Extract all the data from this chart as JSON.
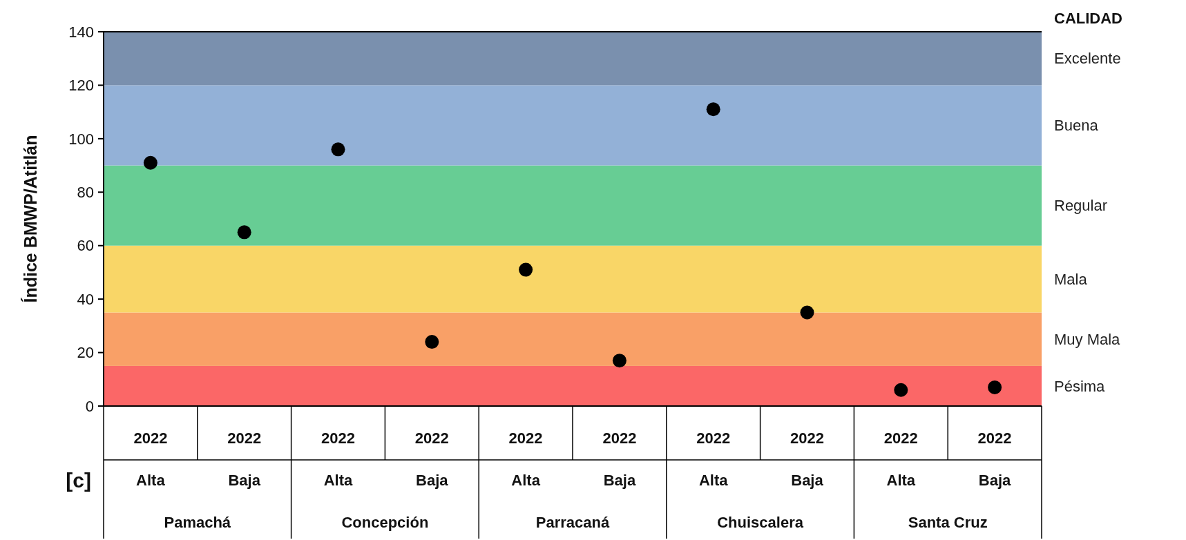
{
  "chart_data": {
    "type": "scatter",
    "ylabel": "Índice BMWP/Atitlán",
    "legend_title": "CALIDAD",
    "categories": [
      "2022\nAlta",
      "2022\nBaja",
      "2022\nAlta",
      "2022\nBaja",
      "2022\nAlta",
      "2022\nBaja",
      "2022\nAlta",
      "2022\nBaja",
      "2022\nAlta",
      "2022\nBaja"
    ],
    "series": [
      {
        "color": "#000000",
        "values": [
          91,
          65,
          96,
          24,
          51,
          17,
          111,
          35,
          6,
          7
        ]
      }
    ],
    "marker": "circle",
    "ylim": [
      0,
      140
    ],
    "yticks": [
      0,
      20,
      40,
      60,
      80,
      100,
      120,
      140
    ],
    "bands": [
      {
        "axis": "y",
        "from": 0,
        "to": 15,
        "label": "Pésima",
        "color": "#fb6767"
      },
      {
        "axis": "y",
        "from": 15,
        "to": 35,
        "label": "Muy Mala",
        "color": "#f9a067"
      },
      {
        "axis": "y",
        "from": 35,
        "to": 60,
        "label": "Mala",
        "color": "#f9d667"
      },
      {
        "axis": "y",
        "from": 60,
        "to": 90,
        "label": "Regular",
        "color": "#67cd94"
      },
      {
        "axis": "y",
        "from": 90,
        "to": 120,
        "label": "Buena",
        "color": "#93b1d7"
      },
      {
        "axis": "y",
        "from": 120,
        "to": 140,
        "label": "Excelente",
        "color": "#7a90ae"
      }
    ],
    "annotations": [
      "Pamachá",
      "Concepción",
      "Parracaná",
      "Chuiscalera",
      "Santa Cruz",
      "[c]"
    ]
  }
}
